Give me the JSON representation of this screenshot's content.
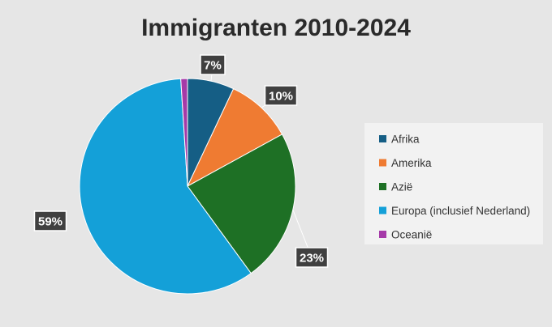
{
  "chart_data": {
    "type": "pie",
    "title": "Immigranten 2010-2024",
    "categories": [
      "Afrika",
      "Amerika",
      "Azië",
      "Europa (inclusief Nederland)",
      "Oceanië"
    ],
    "values": [
      7,
      10,
      23,
      59,
      1
    ],
    "data_labels": [
      "7%",
      "10%",
      "23%",
      "59%",
      ""
    ],
    "colors": [
      "#155e85",
      "#ef7b32",
      "#1e7025",
      "#14a0d8",
      "#a53aa8"
    ],
    "legend": {
      "position": "right",
      "entries": [
        "Afrika",
        "Amerika",
        "Azië",
        "Europa (inclusief Nederland)",
        "Oceanië"
      ]
    },
    "legend_background": "#f2f2f2",
    "label_background": "#404040"
  }
}
